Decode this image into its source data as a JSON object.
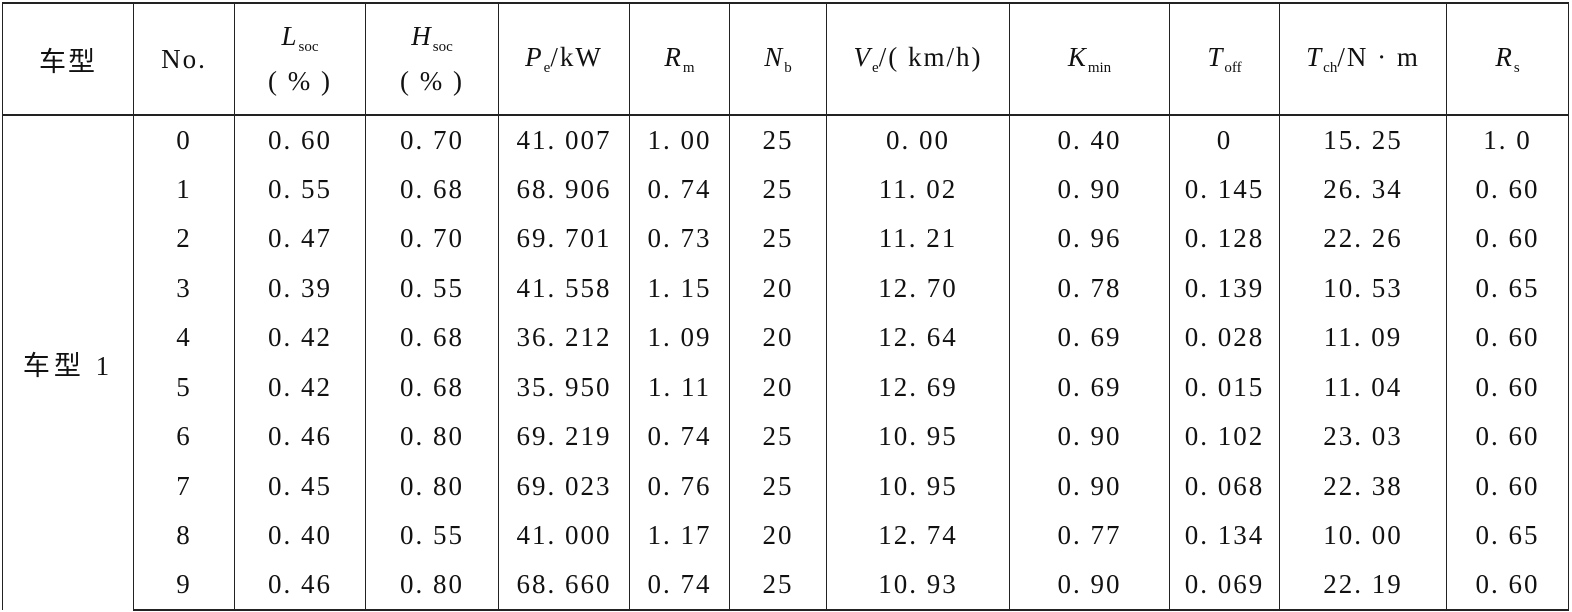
{
  "table": {
    "headers": [
      {
        "key": "model",
        "text": "车型"
      },
      {
        "key": "no",
        "text": "No."
      },
      {
        "key": "lsoc",
        "sym": "L",
        "sub": "soc",
        "unit": "( % )"
      },
      {
        "key": "hsoc",
        "sym": "H",
        "sub": "soc",
        "unit": "( % )"
      },
      {
        "key": "pe",
        "sym": "P",
        "sub": "e",
        "suffix": "/kW"
      },
      {
        "key": "rm",
        "sym": "R",
        "sub": "m"
      },
      {
        "key": "nb",
        "sym": "N",
        "sub": "b"
      },
      {
        "key": "ve",
        "sym": "V",
        "sub": "e",
        "suffix": "/( km/h)"
      },
      {
        "key": "kmin",
        "sym": "K",
        "sub": "min"
      },
      {
        "key": "toff",
        "sym": "T",
        "sub": "off"
      },
      {
        "key": "tch",
        "sym": "T",
        "sub": "ch",
        "suffix": "/N · m"
      },
      {
        "key": "rs",
        "sym": "R",
        "sub": "s"
      }
    ],
    "model_label": "车型 1",
    "rows": [
      [
        "0",
        "0. 60",
        "0. 70",
        "41. 007",
        "1. 00",
        "25",
        "0. 00",
        "0. 40",
        "0",
        "15. 25",
        "1. 0"
      ],
      [
        "1",
        "0. 55",
        "0. 68",
        "68. 906",
        "0. 74",
        "25",
        "11. 02",
        "0. 90",
        "0. 145",
        "26. 34",
        "0. 60"
      ],
      [
        "2",
        "0. 47",
        "0. 70",
        "69. 701",
        "0. 73",
        "25",
        "11. 21",
        "0. 96",
        "0. 128",
        "22. 26",
        "0. 60"
      ],
      [
        "3",
        "0. 39",
        "0. 55",
        "41. 558",
        "1. 15",
        "20",
        "12. 70",
        "0. 78",
        "0. 139",
        "10. 53",
        "0. 65"
      ],
      [
        "4",
        "0. 42",
        "0. 68",
        "36. 212",
        "1. 09",
        "20",
        "12. 64",
        "0. 69",
        "0. 028",
        "11. 09",
        "0. 60"
      ],
      [
        "5",
        "0. 42",
        "0. 68",
        "35. 950",
        "1. 11",
        "20",
        "12. 69",
        "0. 69",
        "0. 015",
        "11. 04",
        "0. 60"
      ],
      [
        "6",
        "0. 46",
        "0. 80",
        "69. 219",
        "0. 74",
        "25",
        "10. 95",
        "0. 90",
        "0. 102",
        "23. 03",
        "0. 60"
      ],
      [
        "7",
        "0. 45",
        "0. 80",
        "69. 023",
        "0. 76",
        "25",
        "10. 95",
        "0. 90",
        "0. 068",
        "22. 38",
        "0. 60"
      ],
      [
        "8",
        "0. 40",
        "0. 55",
        "41. 000",
        "1. 17",
        "20",
        "12. 74",
        "0. 77",
        "0. 134",
        "10. 00",
        "0. 65"
      ],
      [
        "9",
        "0. 46",
        "0. 80",
        "68. 660",
        "0. 74",
        "25",
        "10. 93",
        "0. 90",
        "0. 069",
        "22. 19",
        "0. 60"
      ]
    ]
  }
}
